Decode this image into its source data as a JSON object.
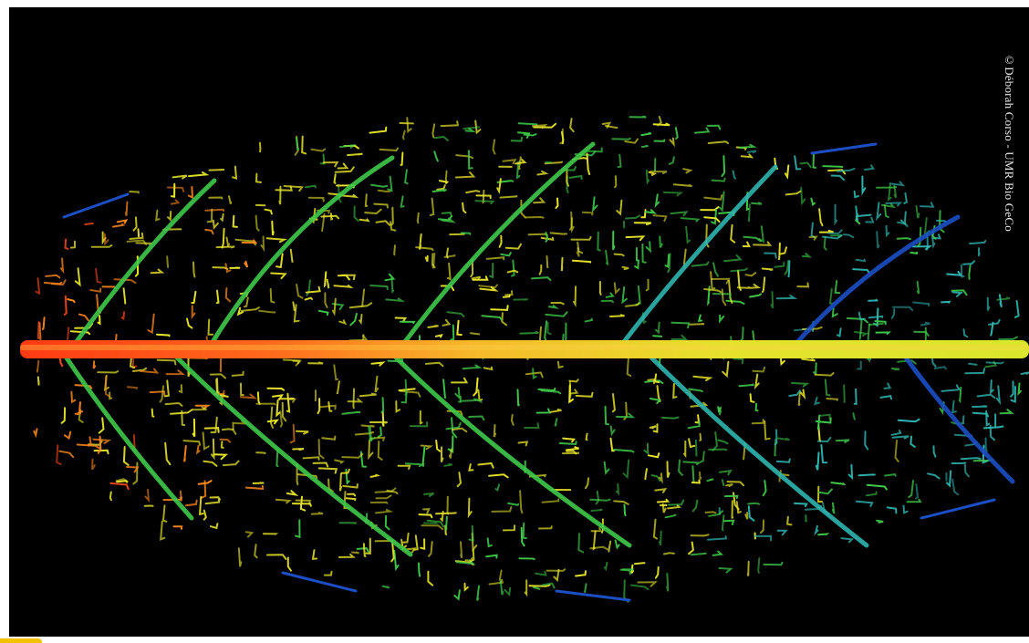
{
  "photo": {
    "credit": "©Déborah Corso - UMR Bio GeCo",
    "palette": {
      "background": "#000000",
      "red": "#ff4a1a",
      "orange": "#ff8a1e",
      "yellow": "#e8e52a",
      "green": "#3fc94a",
      "cyan": "#2fb5b0",
      "blue": "#1c4fc4"
    },
    "accent_color": "#f2c200"
  }
}
